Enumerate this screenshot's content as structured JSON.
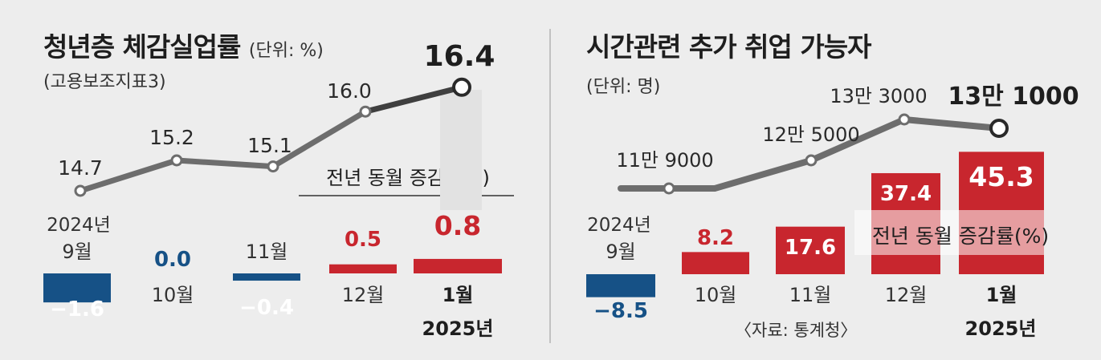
{
  "chart_data": [
    {
      "type": "line+bar",
      "title": "청년층 체감실업률",
      "unit": "(단위: %)",
      "subtitle": "(고용보조지표3)",
      "categories": [
        "9월",
        "10월",
        "11월",
        "12월",
        "1월"
      ],
      "category_year_labels": [
        "2024년",
        "",
        "",
        "",
        "2025년"
      ],
      "line": {
        "values": [
          14.7,
          15.2,
          15.1,
          16.0,
          16.4
        ],
        "value_labels": [
          "14.7",
          "15.2",
          "15.1",
          "16.0",
          "16.4"
        ]
      },
      "bars": {
        "name": "전년 동월 증감(%P)",
        "values": [
          -1.6,
          0.0,
          -0.4,
          0.5,
          0.8
        ],
        "value_labels": [
          "−1.6",
          "0.0",
          "−0.4",
          "0.5",
          "0.8"
        ]
      },
      "colors": {
        "positive": "#c8262e",
        "negative": "#165186",
        "zero_label": "#165186",
        "line": "#6d6d6d",
        "highlight": "#c0242b"
      }
    },
    {
      "type": "line+bar",
      "title": "시간관련 추가 취업 가능자",
      "unit": "(단위: 명)",
      "categories": [
        "9월",
        "10월",
        "11월",
        "12월",
        "1월"
      ],
      "category_year_labels": [
        "2024년",
        "",
        "",
        "",
        "2025년"
      ],
      "line": {
        "values": [
          119000,
          119000,
          125000,
          133000,
          131000
        ],
        "value_labels": [
          "11만 9000",
          "",
          "12만 5000",
          "13만 3000",
          "13만 1000"
        ]
      },
      "bars": {
        "name": "전년 동월 증감률(%)",
        "values": [
          -8.5,
          8.2,
          17.6,
          37.4,
          45.3
        ],
        "value_labels": [
          "−8.5",
          "8.2",
          "17.6",
          "37.4",
          "45.3"
        ]
      },
      "colors": {
        "positive": "#c8262e",
        "negative": "#165186",
        "line": "#6d6d6d"
      }
    }
  ],
  "source": "〈자료: 통계청〉"
}
